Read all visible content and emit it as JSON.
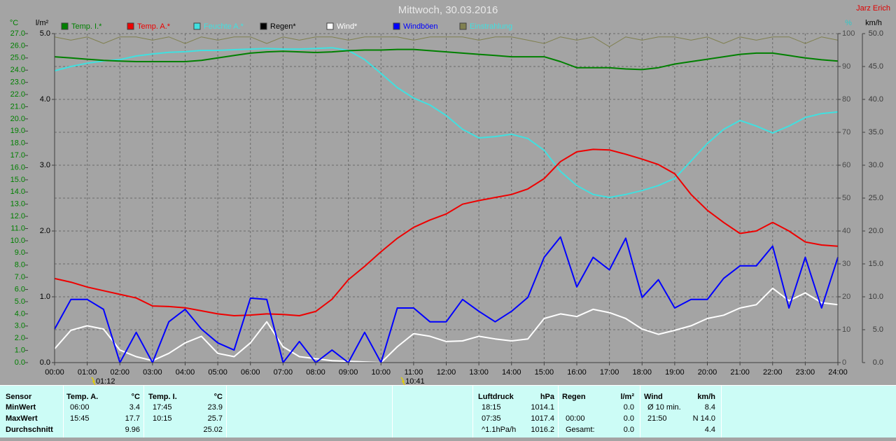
{
  "chart_data": {
    "type": "line",
    "title": "Mittwoch, 30.03.2016",
    "author": "Jarz Erich",
    "ylabel": "°C",
    "y2label": "%",
    "y3label": "km/h",
    "y4label": "l/m²",
    "xlim": [
      0,
      24
    ],
    "xticks": [
      {
        "value": 0,
        "label": "00:00"
      },
      {
        "value": 1,
        "label": "01:00"
      },
      {
        "value": 2,
        "label": "02:00"
      },
      {
        "value": 3,
        "label": "03:00"
      },
      {
        "value": 4,
        "label": "04:00"
      },
      {
        "value": 5,
        "label": "05:00"
      },
      {
        "value": 6,
        "label": "06:00"
      },
      {
        "value": 7,
        "label": "07:00"
      },
      {
        "value": 8,
        "label": "08:00"
      },
      {
        "value": 9,
        "label": "09:00"
      },
      {
        "value": 10,
        "label": "10:00"
      },
      {
        "value": 11,
        "label": "11:00"
      },
      {
        "value": 12,
        "label": "12:00"
      },
      {
        "value": 13,
        "label": "13:00"
      },
      {
        "value": 14,
        "label": "14:00"
      },
      {
        "value": 15,
        "label": "15:00"
      },
      {
        "value": 16,
        "label": "16:00"
      },
      {
        "value": 17,
        "label": "17:00"
      },
      {
        "value": 18,
        "label": "18:00"
      },
      {
        "value": 19,
        "label": "19:00"
      },
      {
        "value": 20,
        "label": "20:00"
      },
      {
        "value": 21,
        "label": "21:00"
      },
      {
        "value": 22,
        "label": "22:00"
      },
      {
        "value": 23,
        "label": "23:00"
      },
      {
        "value": 24,
        "label": "24:00"
      }
    ],
    "ylim": [
      0,
      27
    ],
    "yticks": [
      {
        "value": 0,
        "label": "0.0"
      },
      {
        "value": 1,
        "label": "1.0"
      },
      {
        "value": 2,
        "label": "2.0"
      },
      {
        "value": 3,
        "label": "3.0"
      },
      {
        "value": 4,
        "label": "4.0"
      },
      {
        "value": 5,
        "label": "5.0"
      },
      {
        "value": 6,
        "label": "6.0"
      },
      {
        "value": 7,
        "label": "7.0"
      },
      {
        "value": 8,
        "label": "8.0"
      },
      {
        "value": 9,
        "label": "9.0"
      },
      {
        "value": 10,
        "label": "10.0"
      },
      {
        "value": 11,
        "label": "11.0"
      },
      {
        "value": 12,
        "label": "12.0"
      },
      {
        "value": 13,
        "label": "13.0"
      },
      {
        "value": 14,
        "label": "14.0"
      },
      {
        "value": 15,
        "label": "15.0"
      },
      {
        "value": 16,
        "label": "16.0"
      },
      {
        "value": 17,
        "label": "17.0"
      },
      {
        "value": 18,
        "label": "18.0"
      },
      {
        "value": 19,
        "label": "19.0"
      },
      {
        "value": 20,
        "label": "20.0"
      },
      {
        "value": 21,
        "label": "21.0"
      },
      {
        "value": 22,
        "label": "22.0"
      },
      {
        "value": 23,
        "label": "23.0"
      },
      {
        "value": 24,
        "label": "24.0"
      },
      {
        "value": 25,
        "label": "25.0"
      },
      {
        "value": 26,
        "label": "26.0"
      },
      {
        "value": 27,
        "label": "27.0"
      }
    ],
    "y2lim": [
      0,
      100
    ],
    "y2ticks": [
      0,
      10,
      20,
      30,
      40,
      50,
      60,
      70,
      80,
      90,
      100
    ],
    "y3lim": [
      0,
      50
    ],
    "y3ticks": [
      {
        "value": 0,
        "label": "0.0"
      },
      {
        "value": 5,
        "label": "5.0"
      },
      {
        "value": 10,
        "label": "10.0"
      },
      {
        "value": 15,
        "label": "15.0"
      },
      {
        "value": 20,
        "label": "20.0"
      },
      {
        "value": 25,
        "label": "25.0"
      },
      {
        "value": 30,
        "label": "30.0"
      },
      {
        "value": 35,
        "label": "35.0"
      },
      {
        "value": 40,
        "label": "40.0"
      },
      {
        "value": 45,
        "label": "45.0"
      },
      {
        "value": 50,
        "label": "50.0"
      }
    ],
    "y4lim": [
      0,
      5
    ],
    "y4ticks": [
      {
        "value": 0,
        "label": "0.0"
      },
      {
        "value": 1,
        "label": "1.0"
      },
      {
        "value": 2,
        "label": "2.0"
      },
      {
        "value": 3,
        "label": "3.0"
      },
      {
        "value": 4,
        "label": "4.0"
      },
      {
        "value": 5,
        "label": "5.0"
      }
    ],
    "grid": true,
    "x": [
      0,
      0.5,
      1,
      1.5,
      2,
      2.5,
      3,
      3.5,
      4,
      4.5,
      5,
      5.5,
      6,
      6.5,
      7,
      7.5,
      8,
      8.5,
      9,
      9.5,
      10,
      10.5,
      11,
      11.5,
      12,
      12.5,
      13,
      13.5,
      14,
      14.5,
      15,
      15.5,
      16,
      16.5,
      17,
      17.5,
      18,
      18.5,
      19,
      19.5,
      20,
      20.5,
      21,
      21.5,
      22,
      22.5,
      23,
      23.5,
      24
    ],
    "series": [
      {
        "name": "Temp. I.*",
        "color": "#008000",
        "axis": "y",
        "values": [
          25.1,
          25.0,
          24.9,
          24.8,
          24.75,
          24.7,
          24.7,
          24.7,
          24.7,
          24.8,
          25.0,
          25.2,
          25.4,
          25.5,
          25.55,
          25.5,
          25.45,
          25.5,
          25.6,
          25.65,
          25.65,
          25.7,
          25.7,
          25.6,
          25.5,
          25.4,
          25.3,
          25.2,
          25.1,
          25.1,
          25.1,
          24.7,
          24.2,
          24.2,
          24.2,
          24.1,
          24.05,
          24.2,
          24.5,
          24.7,
          24.9,
          25.1,
          25.3,
          25.4,
          25.4,
          25.2,
          25.0,
          24.85,
          24.75
        ]
      },
      {
        "name": "Temp. A.*",
        "color": "#ee0000",
        "axis": "y",
        "values": [
          6.9,
          6.6,
          6.2,
          5.9,
          5.6,
          5.3,
          4.65,
          4.6,
          4.5,
          4.25,
          4.0,
          3.85,
          3.9,
          4.0,
          3.95,
          3.85,
          4.2,
          5.2,
          6.8,
          7.9,
          9.1,
          10.2,
          11.1,
          11.7,
          12.2,
          13.0,
          13.3,
          13.55,
          13.8,
          14.25,
          15.1,
          16.5,
          17.3,
          17.5,
          17.45,
          17.1,
          16.7,
          16.25,
          15.5,
          13.8,
          12.5,
          11.5,
          10.6,
          10.8,
          11.5,
          10.8,
          9.9,
          9.65,
          9.55
        ]
      },
      {
        "name": "Feuchte A.*",
        "color": "#40e0e0",
        "axis": "y2",
        "values": [
          88.7,
          90,
          91,
          91.7,
          92.1,
          93.2,
          93.8,
          94.3,
          94.5,
          94.9,
          94.9,
          95.1,
          95.3,
          95.5,
          95.3,
          95.3,
          95.5,
          95.7,
          94.9,
          92.1,
          87.9,
          83.6,
          80.4,
          78.3,
          75.1,
          70.9,
          68.3,
          68.7,
          69.4,
          68.1,
          64.5,
          58.1,
          53.8,
          51.1,
          50.2,
          51.1,
          52.3,
          53.8,
          56,
          61.3,
          66.6,
          70.9,
          73.6,
          71.9,
          69.8,
          71.9,
          74.5,
          75.7,
          76.2
        ]
      },
      {
        "name": "Regen*",
        "color": "#000000",
        "axis": "y4",
        "values": [
          0,
          0,
          0,
          0,
          0,
          0,
          0,
          0,
          0,
          0,
          0,
          0,
          0,
          0,
          0,
          0,
          0,
          0,
          0,
          0,
          0,
          0,
          0,
          0,
          0,
          0,
          0,
          0,
          0,
          0,
          0,
          0,
          0,
          0,
          0,
          0,
          0,
          0,
          0,
          0,
          0,
          0,
          0,
          0,
          0,
          0,
          0,
          0,
          0
        ]
      },
      {
        "name": "Wind*",
        "color": "#ffffff",
        "axis": "y3",
        "values": [
          2.1,
          4.9,
          5.6,
          5.1,
          1.9,
          0.9,
          0.3,
          1.4,
          3,
          4,
          1.4,
          0.9,
          3,
          6.2,
          2.4,
          0.9,
          0.6,
          0.3,
          0.2,
          0.1,
          0,
          2.4,
          4.4,
          4,
          3.2,
          3.3,
          4,
          3.6,
          3.3,
          3.6,
          6.7,
          7.4,
          7,
          8.1,
          7.6,
          6.7,
          5.1,
          4.3,
          4.9,
          5.6,
          6.7,
          7.2,
          8.3,
          8.8,
          11.3,
          9.4,
          10.6,
          9.1,
          8.8
        ]
      },
      {
        "name": "Windböen",
        "color": "#0000ff",
        "axis": "y3",
        "values": [
          5.1,
          9.6,
          9.6,
          8.1,
          0,
          4.6,
          0,
          6.2,
          8.1,
          5.1,
          3,
          1.9,
          9.8,
          9.6,
          0,
          3.2,
          0,
          1.9,
          0,
          4.6,
          0,
          8.3,
          8.3,
          6.2,
          6.2,
          9.6,
          7.8,
          6.2,
          7.8,
          9.9,
          16,
          19.1,
          11.5,
          16,
          14.1,
          18.9,
          9.9,
          12.6,
          8.3,
          9.6,
          9.6,
          12.8,
          14.7,
          14.7,
          17.7,
          8.3,
          16,
          8.3,
          16
        ]
      },
      {
        "name": "Einstrahlung",
        "color": "#808050",
        "axis": "y2",
        "values": [
          99,
          98,
          99,
          97,
          99,
          99,
          98,
          99,
          97,
          99,
          98,
          99,
          99,
          97,
          99,
          98,
          99,
          99,
          98,
          99,
          99,
          99,
          98,
          99,
          99,
          99,
          98,
          99,
          99,
          98,
          97,
          99,
          98,
          99,
          96,
          99,
          98,
          99,
          99,
          98,
          99,
          97,
          99,
          98,
          99,
          99,
          97,
          99,
          98
        ]
      }
    ],
    "annotations": [
      {
        "x": 1.2,
        "label": "01:12"
      },
      {
        "x": 10.683,
        "label": "10:41"
      }
    ]
  },
  "stats": {
    "labels": [
      "Sensor",
      "MinWert",
      "MaxWert",
      "Durchschnitt"
    ],
    "columns": [
      {
        "title": "Temp. A.",
        "unit": "°C",
        "rows": [
          [
            "06:00",
            "3.4"
          ],
          [
            "15:45",
            "17.7"
          ],
          [
            null,
            "9.96"
          ]
        ]
      },
      {
        "title": "Temp. I.",
        "unit": "°C",
        "rows": [
          [
            "17:45",
            "23.9"
          ],
          [
            "10:15",
            "25.7"
          ],
          [
            null,
            "25.02"
          ]
        ]
      },
      {
        "title": "Luftdruck",
        "unit": "hPa",
        "rows": [
          [
            "18:15",
            "1014.1"
          ],
          [
            "07:35",
            "1017.4"
          ],
          [
            "^1.1hPa/h",
            "1016.2"
          ]
        ]
      },
      {
        "title": "Regen",
        "unit": "l/m²",
        "rows": [
          [
            null,
            "0.0"
          ],
          [
            "00:00",
            "0.0"
          ],
          [
            "Gesamt:",
            "0.0"
          ]
        ]
      },
      {
        "title": "Wind",
        "unit": "km/h",
        "rows": [
          [
            "Ø 10 min.",
            "8.4"
          ],
          [
            "21:50",
            "N 14.0"
          ],
          [
            null,
            "4.4"
          ]
        ]
      }
    ]
  }
}
